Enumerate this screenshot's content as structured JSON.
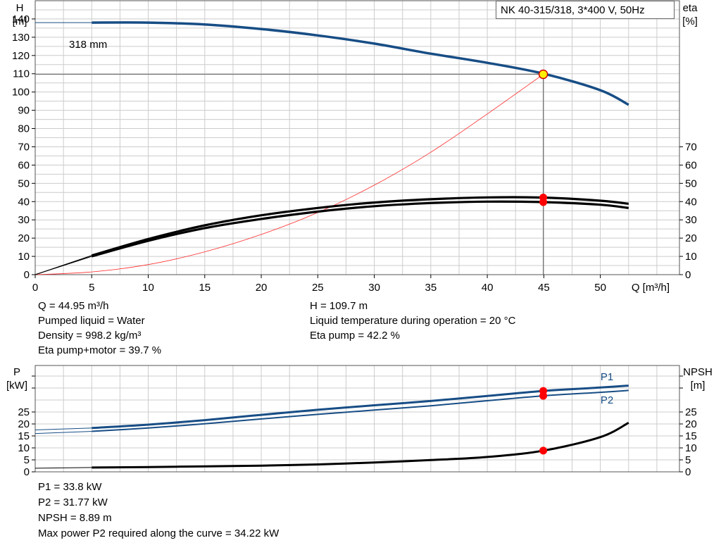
{
  "colors": {
    "pump_curve": "#174d85",
    "eta_curve": "#000000",
    "system_curve": "#ff2a2a",
    "operating_point_fill": "#ffee00",
    "operating_point_stroke": "#cc0000",
    "marker": "#ff0000",
    "grid": "#cccccc",
    "frame": "#555555"
  },
  "legend_text": "NK 40-315/318, 3*400 V, 50Hz",
  "info_top": {
    "q": "Q = 44.95 m³/h",
    "pumped_liquid": "Pumped liquid = Water",
    "density": "Density = 998.2 kg/m³",
    "eta_pump_motor": "Eta pump+motor = 39.7 %",
    "h": "H = 109.7 m",
    "liquid_temp": "Liquid temperature during operation = 20 °C",
    "eta_pump": "Eta pump = 42.2 %"
  },
  "info_bottom": {
    "p1": "P1 = 33.8 kW",
    "p2": "P2 = 31.77 kW",
    "npsh": "NPSH = 8.89 m",
    "max_power": "Max power P2 required along the curve = 34.22 kW"
  },
  "chart_data": [
    {
      "type": "line",
      "title": "NK 40-315/318, 3*400 V, 50Hz",
      "xlabel": "Q [m³/h]",
      "ylabel_left": [
        "H",
        "[m]"
      ],
      "ylabel_right": [
        "eta",
        "[%]"
      ],
      "xlim": [
        0,
        57
      ],
      "ylim_left": [
        0,
        150
      ],
      "ylim_right": [
        0,
        70
      ],
      "x_ticks": [
        0,
        5,
        10,
        15,
        20,
        25,
        30,
        35,
        40,
        45,
        50
      ],
      "y_ticks_left": [
        0,
        10,
        20,
        30,
        40,
        50,
        60,
        70,
        80,
        90,
        100,
        110,
        120,
        130,
        140
      ],
      "y_ticks_right": [
        0,
        10,
        20,
        30,
        40,
        50,
        60,
        70
      ],
      "grid": true,
      "curve_label": "318 mm",
      "operating_point": {
        "x": 44.95,
        "y": 109.7
      },
      "series": [
        {
          "axis": "left",
          "role": "head",
          "x": [
            0,
            5,
            10,
            15,
            20,
            25,
            30,
            35,
            40,
            45,
            50,
            52.5
          ],
          "y": [
            138,
            138,
            138,
            137,
            134.5,
            131,
            126.5,
            121,
            116,
            110,
            101,
            93
          ]
        },
        {
          "axis": "left",
          "role": "system",
          "x": [
            0,
            5,
            10,
            15,
            20,
            25,
            30,
            35,
            40,
            44.95
          ],
          "y": [
            0,
            1.5,
            5.5,
            12.5,
            22,
            34,
            49,
            67,
            88,
            109.7
          ]
        },
        {
          "axis": "right",
          "role": "eta_pump",
          "x": [
            0,
            5,
            10,
            15,
            20,
            25,
            30,
            35,
            40,
            45,
            50,
            52.5
          ],
          "y": [
            0,
            10.5,
            19.5,
            27,
            32.5,
            36.5,
            39.5,
            41.3,
            42.3,
            42.2,
            40.5,
            38.8
          ]
        },
        {
          "axis": "right",
          "role": "eta_pump_motor",
          "x": [
            0,
            5,
            10,
            15,
            20,
            25,
            30,
            35,
            40,
            45,
            50,
            52.5
          ],
          "y": [
            0,
            10,
            18.5,
            25.5,
            30.5,
            34.5,
            37.5,
            39.2,
            40,
            39.7,
            38.3,
            36.5
          ]
        }
      ]
    },
    {
      "type": "line",
      "ylabel_left": [
        "P",
        "[kW]"
      ],
      "ylabel_right": [
        "NPSH",
        "[m]"
      ],
      "xlim": [
        0,
        57
      ],
      "ylim": [
        0,
        40
      ],
      "y_ticks": [
        0,
        5,
        10,
        15,
        20,
        25
      ],
      "grid": true,
      "series": [
        {
          "name": "P1",
          "role": "power",
          "x": [
            0,
            5,
            10,
            15,
            20,
            25,
            30,
            35,
            40,
            45,
            50,
            52.5
          ],
          "y": [
            17.5,
            18.3,
            19.7,
            21.6,
            23.8,
            25.9,
            27.8,
            29.6,
            31.7,
            33.8,
            35.2,
            36
          ]
        },
        {
          "name": "P2",
          "role": "power",
          "x": [
            0,
            5,
            10,
            15,
            20,
            25,
            30,
            35,
            40,
            45,
            50,
            52.5
          ],
          "y": [
            16,
            16.9,
            18.3,
            20.1,
            22.1,
            24,
            25.8,
            27.6,
            29.7,
            31.77,
            33.2,
            34
          ]
        },
        {
          "role": "npsh",
          "x": [
            0,
            5,
            10,
            15,
            20,
            25,
            30,
            35,
            40,
            45,
            50,
            52.5
          ],
          "y": [
            1.5,
            1.8,
            2,
            2.3,
            2.6,
            3.1,
            3.9,
            4.9,
            6.2,
            8.89,
            14.5,
            20.5
          ]
        }
      ]
    }
  ]
}
